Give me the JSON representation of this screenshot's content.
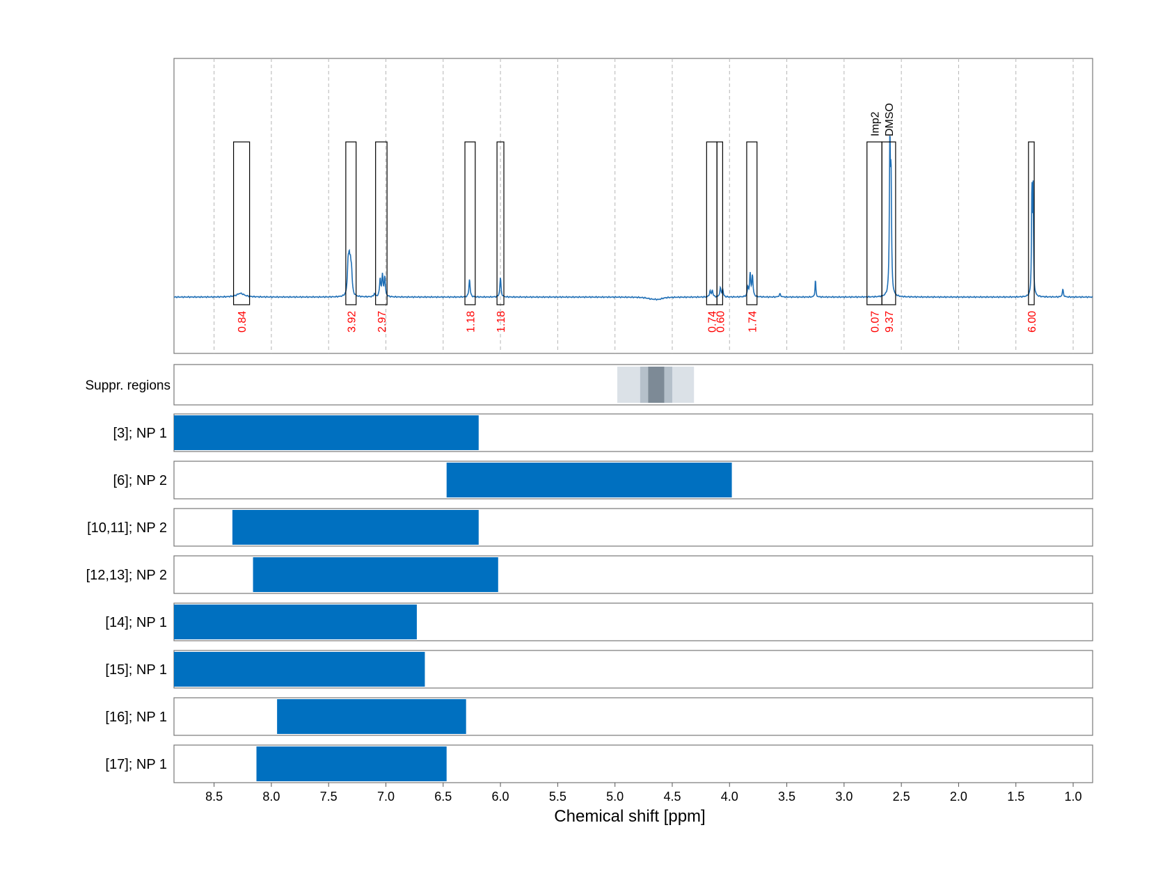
{
  "chart_data": {
    "type": "line",
    "xlabel": "Chemical shift [ppm]",
    "xlim": [
      8.85,
      0.83
    ],
    "x_ticks": [
      "8.5",
      "8.0",
      "7.5",
      "7.0",
      "6.5",
      "6.0",
      "5.5",
      "5.0",
      "4.5",
      "4.0",
      "3.5",
      "3.0",
      "2.5",
      "2.0",
      "1.5",
      "1.0"
    ],
    "colors": {
      "spectrum": "#1f6fb6",
      "bar": "#0070c0",
      "integral_label": "#ff0000",
      "suppression_light": "#dbe1e7",
      "suppression_mid": "#b5c0ca",
      "suppression_dark": "#7d8a96"
    },
    "spectrum": {
      "baseline": 0.0,
      "peaks": [
        {
          "x": 8.27,
          "y": 0.025,
          "w": 0.04
        },
        {
          "x": 7.33,
          "y": 0.2,
          "w": 0.007
        },
        {
          "x": 7.32,
          "y": 0.18,
          "w": 0.007
        },
        {
          "x": 7.31,
          "y": 0.16,
          "w": 0.007
        },
        {
          "x": 7.3,
          "y": 0.14,
          "w": 0.007
        },
        {
          "x": 7.1,
          "y": 0.02,
          "w": 0.007
        },
        {
          "x": 7.05,
          "y": 0.12,
          "w": 0.006
        },
        {
          "x": 7.03,
          "y": 0.14,
          "w": 0.006
        },
        {
          "x": 7.01,
          "y": 0.13,
          "w": 0.006
        },
        {
          "x": 6.27,
          "y": 0.12,
          "w": 0.006
        },
        {
          "x": 6.0,
          "y": 0.13,
          "w": 0.006
        },
        {
          "x": 4.68,
          "y": -0.01,
          "w": 0.05
        },
        {
          "x": 4.62,
          "y": -0.012,
          "w": 0.04
        },
        {
          "x": 4.17,
          "y": 0.04,
          "w": 0.006
        },
        {
          "x": 4.15,
          "y": 0.045,
          "w": 0.006
        },
        {
          "x": 4.08,
          "y": 0.06,
          "w": 0.006
        },
        {
          "x": 4.06,
          "y": 0.05,
          "w": 0.006
        },
        {
          "x": 3.82,
          "y": 0.15,
          "w": 0.006
        },
        {
          "x": 3.8,
          "y": 0.14,
          "w": 0.006
        },
        {
          "x": 3.84,
          "y": 0.06,
          "w": 0.006
        },
        {
          "x": 3.56,
          "y": 0.02,
          "w": 0.008
        },
        {
          "x": 3.25,
          "y": 0.12,
          "w": 0.004
        },
        {
          "x": 2.6,
          "y": 1.0,
          "w": 0.005
        },
        {
          "x": 2.59,
          "y": 0.75,
          "w": 0.005
        },
        {
          "x": 1.36,
          "y": 0.73,
          "w": 0.004
        },
        {
          "x": 1.35,
          "y": 0.7,
          "w": 0.004
        },
        {
          "x": 1.09,
          "y": 0.05,
          "w": 0.006
        }
      ]
    },
    "integral_regions": [
      {
        "from": 8.33,
        "to": 8.19,
        "label": "0.84"
      },
      {
        "from": 7.35,
        "to": 7.26,
        "label": "3.92"
      },
      {
        "from": 7.09,
        "to": 6.99,
        "label": "2.97"
      },
      {
        "from": 6.31,
        "to": 6.22,
        "label": "1.18"
      },
      {
        "from": 6.03,
        "to": 5.97,
        "label": "1.18"
      },
      {
        "from": 4.2,
        "to": 4.11,
        "label": "0.74"
      },
      {
        "from": 4.11,
        "to": 4.06,
        "label": "0.60"
      },
      {
        "from": 3.85,
        "to": 3.76,
        "label": "1.74"
      },
      {
        "from": 2.8,
        "to": 2.67,
        "label": "0.07",
        "name": "Imp2"
      },
      {
        "from": 2.67,
        "to": 2.55,
        "label": "9.37",
        "name": "DMSO"
      },
      {
        "from": 1.39,
        "to": 1.34,
        "label": "6.00"
      }
    ],
    "suppression": {
      "label": "Suppr. regions",
      "bands": [
        {
          "from": 4.98,
          "to": 4.31,
          "shade": "light"
        },
        {
          "from": 4.78,
          "to": 4.5,
          "shade": "mid"
        },
        {
          "from": 4.71,
          "to": 4.57,
          "shade": "dark"
        }
      ]
    },
    "rows": [
      {
        "label": "[3]; NP 1",
        "from": 8.85,
        "to": 6.19
      },
      {
        "label": "[6]; NP 2",
        "from": 6.47,
        "to": 3.98
      },
      {
        "label": "[10,11]; NP 2",
        "from": 8.34,
        "to": 6.19
      },
      {
        "label": "[12,13]; NP 2",
        "from": 8.16,
        "to": 6.02
      },
      {
        "label": "[14]; NP 1",
        "from": 8.85,
        "to": 6.73
      },
      {
        "label": "[15]; NP 1",
        "from": 8.85,
        "to": 6.66
      },
      {
        "label": "[16]; NP 1",
        "from": 7.95,
        "to": 6.3
      },
      {
        "label": "[17]; NP 1",
        "from": 8.13,
        "to": 6.47
      }
    ]
  }
}
